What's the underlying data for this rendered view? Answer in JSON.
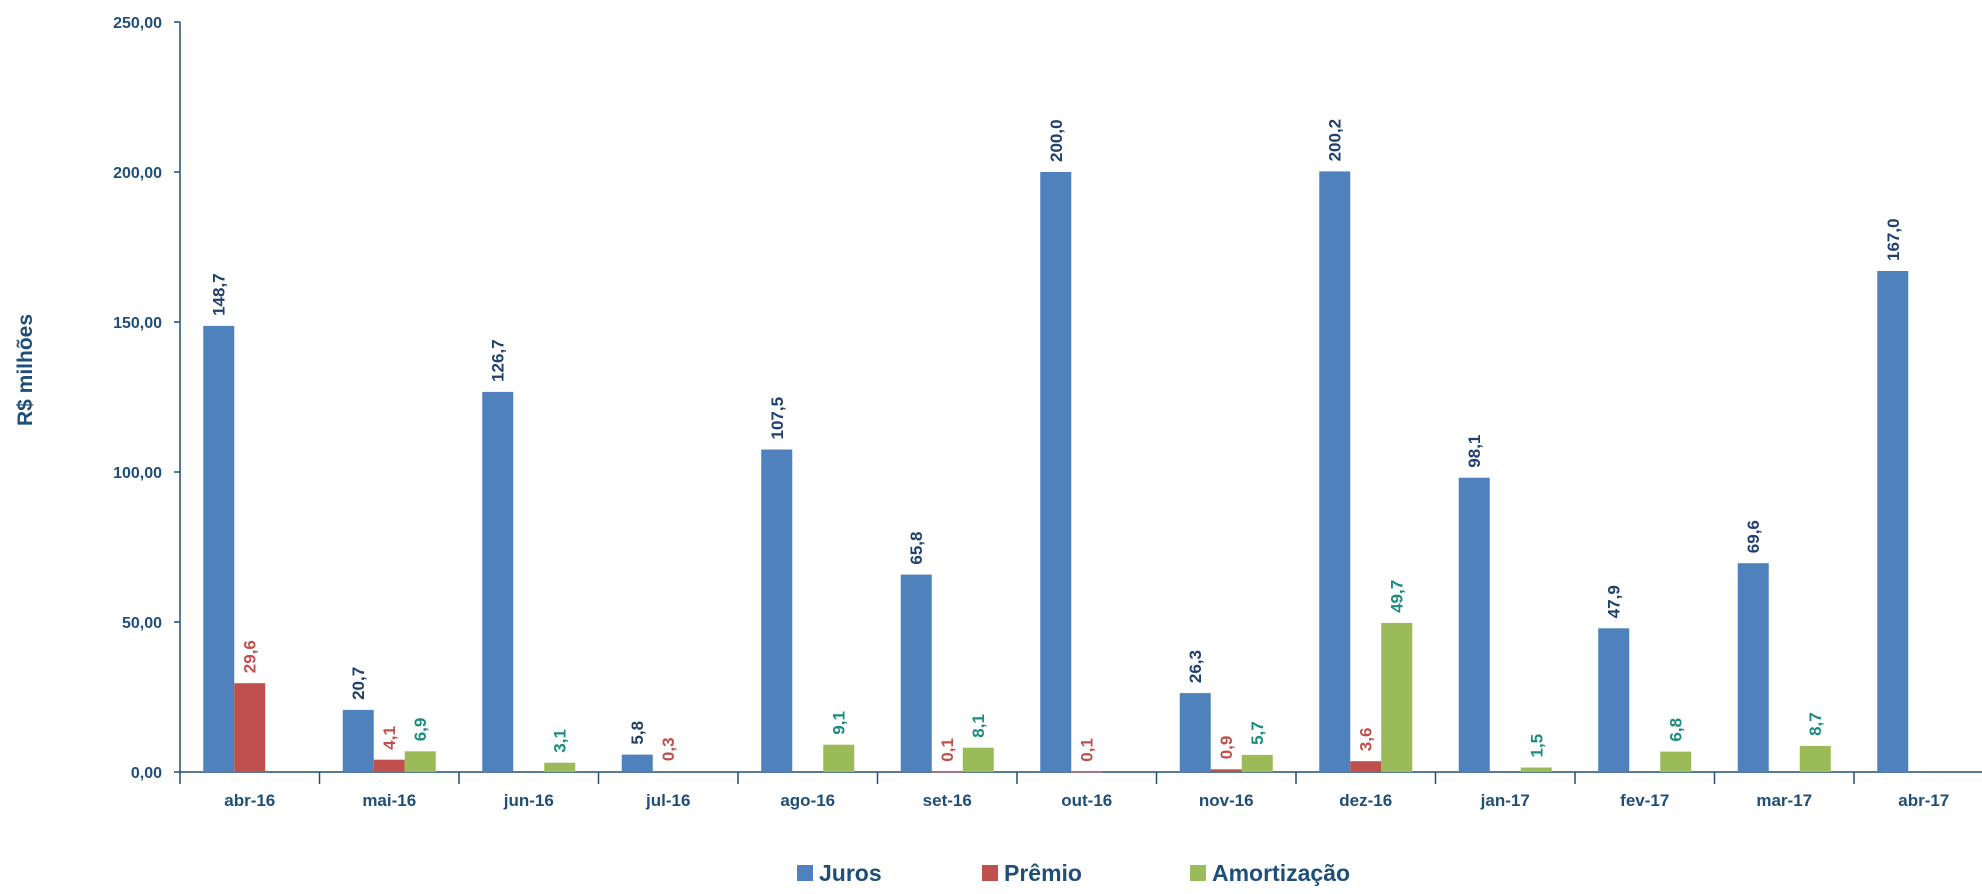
{
  "chart_data": {
    "type": "bar",
    "ylabel": "R$ milhões",
    "ylim": [
      0,
      250
    ],
    "yticks": [
      "0,00",
      "50,00",
      "100,00",
      "150,00",
      "200,00",
      "250,00"
    ],
    "ytick_values": [
      0,
      50,
      100,
      150,
      200,
      250
    ],
    "categories": [
      "abr-16",
      "mai-16",
      "jun-16",
      "jul-16",
      "ago-16",
      "set-16",
      "out-16",
      "nov-16",
      "dez-16",
      "jan-17",
      "fev-17",
      "mar-17",
      "abr-17"
    ],
    "series": [
      {
        "name": "Juros",
        "color": "#4f81bd",
        "label_color": "#1f3f6e",
        "values": [
          148.7,
          20.7,
          126.7,
          5.8,
          107.5,
          65.8,
          200.0,
          26.3,
          200.2,
          98.1,
          47.9,
          69.6,
          167.0
        ],
        "labels": [
          "148,7",
          "20,7",
          "126,7",
          "5,8",
          "107,5",
          "65,8",
          "200,0",
          "26,3",
          "200,2",
          "98,1",
          "47,9",
          "69,6",
          "167,0"
        ]
      },
      {
        "name": "Prêmio",
        "color": "#c0504d",
        "label_color": "#c0504d",
        "values": [
          29.6,
          4.1,
          null,
          0.3,
          null,
          0.1,
          0.1,
          0.9,
          3.6,
          null,
          null,
          null,
          null
        ],
        "labels": [
          "29,6",
          "4,1",
          "",
          "0,3",
          "",
          "0,1",
          "0,1",
          "0,9",
          "3,6",
          "",
          "",
          "",
          ""
        ]
      },
      {
        "name": "Amortização",
        "color": "#9bbb59",
        "label_color": "#1a8c7c",
        "values": [
          null,
          6.9,
          3.1,
          null,
          9.1,
          8.1,
          null,
          5.7,
          49.7,
          1.5,
          6.8,
          8.7,
          null
        ],
        "labels": [
          "",
          "6,9",
          "3,1",
          "",
          "9,1",
          "8,1",
          "",
          "5,7",
          "49,7",
          "1,5",
          "6,8",
          "8,7",
          ""
        ]
      }
    ],
    "legend_position": "bottom",
    "axis_color": "#1f4e79",
    "grid": false
  }
}
